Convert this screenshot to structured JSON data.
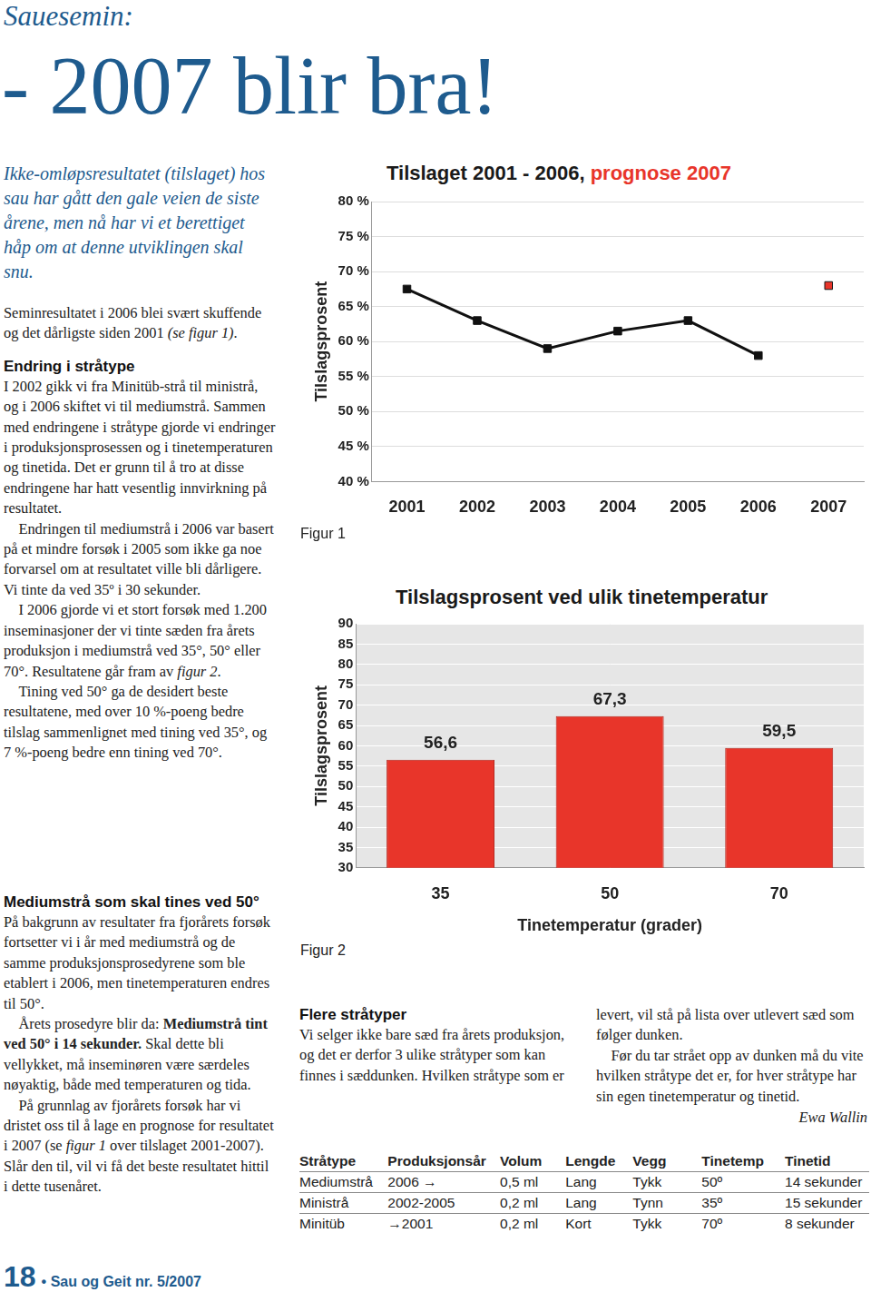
{
  "chart_data": [
    {
      "type": "line",
      "title": [
        {
          "text": "Tilslaget 2001 - 2006, ",
          "color": "#1a1a1a"
        },
        {
          "text": "prognose 2007",
          "color": "#e8352a"
        }
      ],
      "y_label": "Tilslagsprosent",
      "categories": [
        "2001",
        "2002",
        "2003",
        "2004",
        "2005",
        "2006",
        "2007"
      ],
      "series": [
        {
          "color": "#111111",
          "values": [
            67.5,
            63,
            59,
            61.5,
            63,
            58,
            null
          ]
        },
        {
          "color": "#e8352a",
          "values": [
            null,
            null,
            null,
            null,
            null,
            null,
            68
          ]
        }
      ],
      "marker": "square",
      "ylim": [
        40,
        80
      ],
      "yticks": [
        {
          "value": 40,
          "label": "40 %"
        },
        {
          "value": 45,
          "label": "45 %"
        },
        {
          "value": 50,
          "label": "50 %"
        },
        {
          "value": 55,
          "label": "55 %"
        },
        {
          "value": 60,
          "label": "60 %"
        },
        {
          "value": 65,
          "label": "65 %"
        },
        {
          "value": 70,
          "label": "70 %"
        },
        {
          "value": 75,
          "label": "75 %"
        },
        {
          "value": 80,
          "label": "80 %"
        }
      ],
      "grid": true
    },
    {
      "type": "bar",
      "title": [
        {
          "text": "Tilslagsprosent ved ulik tinetemperatur",
          "color": "#1a1a1a"
        }
      ],
      "y_label": "Tilslagsprosent",
      "x_label": "Tinetemperatur (grader)",
      "categories": [
        "35",
        "50",
        "70"
      ],
      "values": [
        56.6,
        67.3,
        59.5
      ],
      "value_labels": [
        "56,6",
        "67,3",
        "59,5"
      ],
      "data_labels": true,
      "color": "#e8352a",
      "ylim": [
        30,
        90
      ],
      "yticks": [
        30,
        35,
        40,
        45,
        50,
        55,
        60,
        65,
        70,
        75,
        80,
        85,
        90
      ],
      "grid": true
    }
  ],
  "document": {
    "kicker": "Sauesemin:",
    "headline": "- 2007 blir bra!",
    "lead": "Ikke-omløpsresultatet (tilslaget) hos sau har gått den gale veien de siste årene, men nå har vi et berettiget håp om at denne utviklingen skal snu.",
    "sections": [
      {
        "paragraphs": [
          [
            {
              "text": "Seminresultatet i 2006 blei svært skuffende og det dårligste siden 2001 "
            },
            {
              "text": "(se figur 1)",
              "em": true
            },
            {
              "text": "."
            }
          ]
        ]
      },
      {
        "heading": "Endring i stråtype",
        "paragraphs": [
          [
            {
              "text": "I 2002 gikk vi fra Minitüb-strå til ministrå, og i 2006 skiftet vi til mediumstrå. Sammen med endringene i stråtype gjorde vi endringer i produksjonsprosessen og i tinetemperaturen og tinetida. Det er grunn til å tro at disse endringene har hatt vesentlig innvirkning på resultatet."
            }
          ],
          [
            {
              "text": "Endringen til mediumstrå i 2006 var basert på et mindre forsøk i 2005 som ikke ga noe forvarsel om at resultatet ville bli dårligere. Vi tinte da ved 35º i 30 sekunder."
            }
          ],
          [
            {
              "text": "I 2006 gjorde vi et stort forsøk med 1.200 inseminasjoner der vi tinte sæden fra årets produksjon i mediumstrå ved 35°, 50° eller 70°. Resultatene går fram av "
            },
            {
              "text": "figur 2",
              "em": true
            },
            {
              "text": "."
            }
          ],
          [
            {
              "text": "Tining ved 50° ga de desidert beste resultatene, med over 10 %-poeng bedre tilslag sammenlignet med tining ved 35°, og 7 %-poeng bedre enn tining ved 70°."
            }
          ]
        ]
      },
      {
        "heading": "Mediumstrå som skal tines ved 50°",
        "paragraphs": [
          [
            {
              "text": "På bakgrunn av resultater fra fjorårets forsøk fortsetter vi i år med mediumstrå og de samme produksjonsprosedyrene som ble etablert i 2006, men tinetemperaturen endres til 50°."
            }
          ],
          [
            {
              "text": "Årets prosedyre blir da: "
            },
            {
              "text": "Mediumstrå tint ved 50° i 14 sekunder.",
              "strong": true
            },
            {
              "text": " Skal dette bli vellykket, må inseminøren være særdeles nøyaktig, både med temperaturen og tida."
            }
          ],
          [
            {
              "text": "På grunnlag av fjorårets forsøk har vi dristet oss til å lage en prognose for resultatet i 2007 (se "
            },
            {
              "text": "figur 1",
              "em": true
            },
            {
              "text": " over tilslaget 2001-2007). Slår den til, vil vi få det beste resultatet hittil i dette tusenåret."
            }
          ]
        ]
      },
      {
        "heading": "Flere stråtyper",
        "paragraphs": [
          [
            {
              "text": "Vi selger ikke bare sæd fra årets produksjon, og det er derfor 3 ulike stråtyper som kan finnes i sæddunken. Hvilken stråtype som er levert, vil stå på lista over utlevert sæd som følger dunken."
            }
          ],
          [
            {
              "text": "Før du tar strået opp av dunken må du vite hvilken stråtype det er, for hver stråtype har sin egen tinetemperatur og tinetid."
            }
          ]
        ]
      }
    ],
    "author": "Ewa Wallin",
    "figure_captions": [
      "Figur 1",
      "Figur 2"
    ],
    "table": {
      "header": [
        "Stråtype",
        "Produksjonsår",
        "Volum",
        "Lengde",
        "Vegg",
        "Tinetemp",
        "Tinetid"
      ],
      "rows": [
        [
          "Mediumstrå",
          "2006 →",
          "0,5 ml",
          "Lang",
          "Tykk",
          "50º",
          "14 sekunder"
        ],
        [
          "Ministrå",
          "2002-2005",
          "0,2 ml",
          "Lang",
          "Tynn",
          "35º",
          "15 sekunder"
        ],
        [
          "Minitüb",
          "→2001",
          "0,2 ml",
          "Kort",
          "Tykk",
          "70º",
          "8 sekunder"
        ]
      ]
    },
    "footer": {
      "page": "18",
      "publication": "• Sau og Geit nr. 5/2007"
    }
  }
}
